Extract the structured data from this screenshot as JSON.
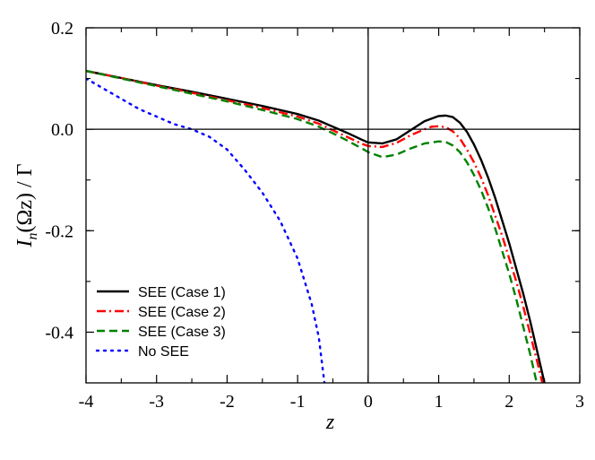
{
  "chart_data": {
    "type": "line",
    "title": "",
    "xlabel": "z",
    "ylabel": "I_n(Ωz) / Γ",
    "ylabel_parts": {
      "main": "I",
      "sub": "n",
      "rest": "(Ωz) / Γ"
    },
    "xlim": [
      -4,
      3
    ],
    "ylim": [
      -0.5,
      0.2
    ],
    "xticks": [
      -4,
      -3,
      -2,
      -1,
      0,
      1,
      2,
      3
    ],
    "xtick_labels": [
      "-4",
      "-3",
      "-2",
      "-1",
      "0",
      "1",
      "2",
      "3"
    ],
    "yticks": [
      -0.4,
      -0.2,
      0.0,
      0.2
    ],
    "ytick_labels": [
      "-0.4",
      "-0.2",
      "0.0",
      "0.2"
    ],
    "zero_lines": true,
    "legend_position": "bottom-left",
    "series": [
      {
        "name": "SEE (Case 1)",
        "color": "#000000",
        "dash": "solid",
        "points": [
          [
            -4,
            0.115
          ],
          [
            -3.5,
            0.101
          ],
          [
            -3,
            0.087
          ],
          [
            -2.5,
            0.074
          ],
          [
            -2,
            0.06
          ],
          [
            -1.5,
            0.046
          ],
          [
            -1,
            0.03
          ],
          [
            -0.7,
            0.017
          ],
          [
            -0.5,
            0.005
          ],
          [
            -0.3,
            -0.007
          ],
          [
            -0.1,
            -0.02
          ],
          [
            0,
            -0.026
          ],
          [
            0.2,
            -0.028
          ],
          [
            0.4,
            -0.02
          ],
          [
            0.6,
            -0.002
          ],
          [
            0.8,
            0.016
          ],
          [
            1.0,
            0.026
          ],
          [
            1.1,
            0.027
          ],
          [
            1.2,
            0.024
          ],
          [
            1.3,
            0.013
          ],
          [
            1.4,
            -0.005
          ],
          [
            1.5,
            -0.03
          ],
          [
            1.6,
            -0.06
          ],
          [
            1.7,
            -0.095
          ],
          [
            1.8,
            -0.135
          ],
          [
            1.9,
            -0.18
          ],
          [
            2.0,
            -0.225
          ],
          [
            2.1,
            -0.275
          ],
          [
            2.2,
            -0.325
          ],
          [
            2.3,
            -0.38
          ],
          [
            2.4,
            -0.44
          ],
          [
            2.5,
            -0.5
          ]
        ]
      },
      {
        "name": "SEE (Case 2)",
        "color": "#ff0000",
        "dash": "dashdot",
        "points": [
          [
            -4,
            0.115
          ],
          [
            -3.5,
            0.101
          ],
          [
            -3,
            0.086
          ],
          [
            -2.5,
            0.072
          ],
          [
            -2,
            0.057
          ],
          [
            -1.5,
            0.042
          ],
          [
            -1,
            0.025
          ],
          [
            -0.7,
            0.011
          ],
          [
            -0.5,
            -0.002
          ],
          [
            -0.3,
            -0.015
          ],
          [
            -0.1,
            -0.028
          ],
          [
            0,
            -0.033
          ],
          [
            0.2,
            -0.035
          ],
          [
            0.4,
            -0.027
          ],
          [
            0.6,
            -0.012
          ],
          [
            0.8,
            0.0
          ],
          [
            0.9,
            0.005
          ],
          [
            1.0,
            0.006
          ],
          [
            1.1,
            0.004
          ],
          [
            1.2,
            -0.004
          ],
          [
            1.3,
            -0.018
          ],
          [
            1.4,
            -0.04
          ],
          [
            1.5,
            -0.065
          ],
          [
            1.6,
            -0.095
          ],
          [
            1.7,
            -0.13
          ],
          [
            1.8,
            -0.17
          ],
          [
            1.9,
            -0.21
          ],
          [
            2.0,
            -0.255
          ],
          [
            2.1,
            -0.3
          ],
          [
            2.2,
            -0.35
          ],
          [
            2.3,
            -0.405
          ],
          [
            2.4,
            -0.46
          ],
          [
            2.47,
            -0.5
          ]
        ]
      },
      {
        "name": "SEE (Case 3)",
        "color": "#008000",
        "dash": "dashed",
        "points": [
          [
            -4,
            0.115
          ],
          [
            -3.5,
            0.1
          ],
          [
            -3,
            0.085
          ],
          [
            -2.5,
            0.07
          ],
          [
            -2,
            0.055
          ],
          [
            -1.5,
            0.038
          ],
          [
            -1,
            0.02
          ],
          [
            -0.7,
            0.005
          ],
          [
            -0.5,
            -0.008
          ],
          [
            -0.3,
            -0.022
          ],
          [
            -0.1,
            -0.037
          ],
          [
            0,
            -0.045
          ],
          [
            0.2,
            -0.055
          ],
          [
            0.4,
            -0.05
          ],
          [
            0.6,
            -0.038
          ],
          [
            0.8,
            -0.028
          ],
          [
            1.0,
            -0.024
          ],
          [
            1.1,
            -0.025
          ],
          [
            1.2,
            -0.032
          ],
          [
            1.3,
            -0.045
          ],
          [
            1.4,
            -0.065
          ],
          [
            1.5,
            -0.09
          ],
          [
            1.6,
            -0.12
          ],
          [
            1.7,
            -0.155
          ],
          [
            1.8,
            -0.195
          ],
          [
            1.9,
            -0.24
          ],
          [
            2.0,
            -0.285
          ],
          [
            2.1,
            -0.335
          ],
          [
            2.2,
            -0.39
          ],
          [
            2.3,
            -0.445
          ],
          [
            2.39,
            -0.5
          ]
        ]
      },
      {
        "name": "No SEE",
        "color": "#0000ff",
        "dash": "dotted",
        "points": [
          [
            -4,
            0.1
          ],
          [
            -3.75,
            0.08
          ],
          [
            -3.5,
            0.06
          ],
          [
            -3.25,
            0.04
          ],
          [
            -3,
            0.025
          ],
          [
            -2.75,
            0.01
          ],
          [
            -2.5,
            0.0
          ],
          [
            -2.25,
            -0.015
          ],
          [
            -2,
            -0.04
          ],
          [
            -1.75,
            -0.08
          ],
          [
            -1.5,
            -0.125
          ],
          [
            -1.25,
            -0.18
          ],
          [
            -1,
            -0.255
          ],
          [
            -0.8,
            -0.345
          ],
          [
            -0.7,
            -0.41
          ],
          [
            -0.62,
            -0.5
          ]
        ]
      }
    ]
  }
}
